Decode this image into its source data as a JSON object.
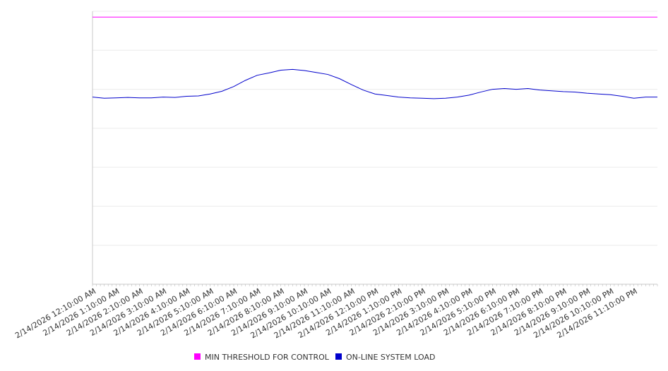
{
  "chart_data": {
    "type": "line",
    "title": "",
    "xlabel": "",
    "ylabel": "",
    "x_ticks": [
      "2/14/2026 12:10:00 AM",
      "2/14/2026 1:10:00 AM",
      "2/14/2026 2:10:00 AM",
      "2/14/2026 3:10:00 AM",
      "2/14/2026 4:10:00 AM",
      "2/14/2026 5:10:00 AM",
      "2/14/2026 6:10:00 AM",
      "2/14/2026 7:10:00 AM",
      "2/14/2026 8:10:00 AM",
      "2/14/2026 9:10:00 AM",
      "2/14/2026 10:10:00 AM",
      "2/14/2026 11:10:00 AM",
      "2/14/2026 12:10:00 PM",
      "2/14/2026 1:10:00 PM",
      "2/14/2026 2:10:00 PM",
      "2/14/2026 3:10:00 PM",
      "2/14/2026 4:10:00 PM",
      "2/14/2026 5:10:00 PM",
      "2/14/2026 6:10:00 PM",
      "2/14/2026 7:10:00 PM",
      "2/14/2026 8:10:00 PM",
      "2/14/2026 9:10:00 PM",
      "2/14/2026 10:10:00 PM",
      "2/14/2026 11:10:00 PM"
    ],
    "x_range_hours": [
      0,
      24
    ],
    "y_range": [
      0,
      7
    ],
    "grid": true,
    "y_tick_labels_visible": false,
    "legend_position": "bottom-center",
    "series": [
      {
        "name": "MIN THRESHOLD FOR CONTROL",
        "color": "#ff00ff",
        "x_hours": [
          0,
          24
        ],
        "values": [
          6.85,
          6.85
        ]
      },
      {
        "name": "ON-LINE SYSTEM LOAD",
        "color": "#0000cc",
        "x_hours": [
          0,
          0.5,
          1,
          1.5,
          2,
          2.5,
          3,
          3.5,
          4,
          4.5,
          5,
          5.5,
          6,
          6.5,
          7,
          7.5,
          8,
          8.5,
          9,
          9.5,
          10,
          10.5,
          11,
          11.5,
          12,
          12.5,
          13,
          13.5,
          14,
          14.5,
          15,
          15.5,
          16,
          16.5,
          17,
          17.5,
          18,
          18.5,
          19,
          19.5,
          20,
          20.5,
          21,
          21.5,
          22,
          22.5,
          23,
          23.5,
          24
        ],
        "values": [
          4.8,
          4.77,
          4.78,
          4.79,
          4.78,
          4.78,
          4.8,
          4.79,
          4.82,
          4.83,
          4.88,
          4.95,
          5.07,
          5.23,
          5.36,
          5.42,
          5.49,
          5.51,
          5.48,
          5.43,
          5.38,
          5.27,
          5.12,
          4.98,
          4.88,
          4.84,
          4.8,
          4.78,
          4.77,
          4.76,
          4.77,
          4.8,
          4.85,
          4.93,
          5.0,
          5.02,
          5.0,
          5.02,
          4.98,
          4.96,
          4.94,
          4.93,
          4.9,
          4.88,
          4.86,
          4.82,
          4.77,
          4.8,
          4.8
        ]
      }
    ]
  }
}
